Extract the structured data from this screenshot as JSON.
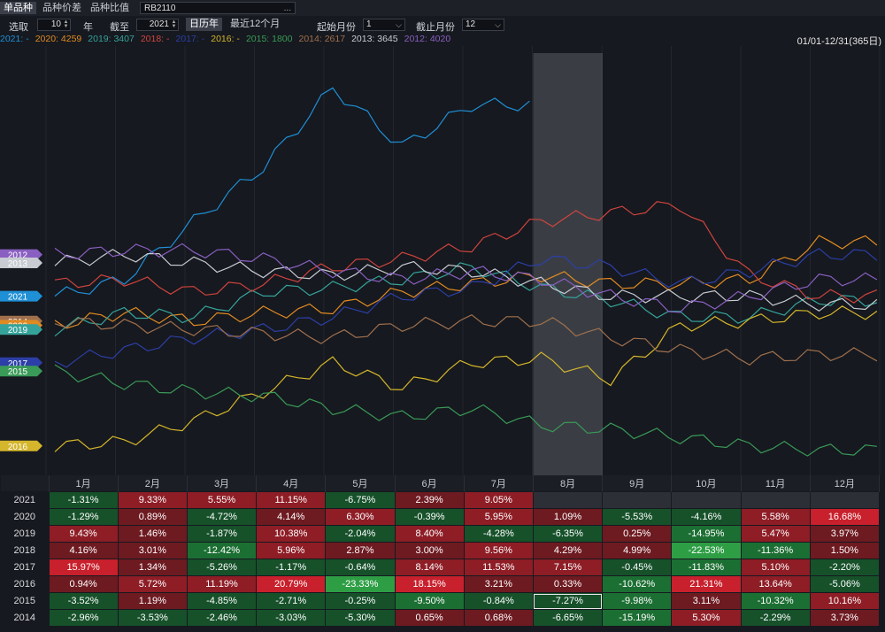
{
  "tabs": [
    "单品种",
    "品种价差",
    "品种比值"
  ],
  "code": "RB2110",
  "code_btn": "...",
  "controls": {
    "pick_label": "选取",
    "years_value": "10",
    "years_unit": "年",
    "until_label": "截至",
    "until_value": "2021",
    "calendar_btn": "日历年",
    "recent_btn": "最近12个月",
    "start_label": "起始月份",
    "start_value": "1",
    "end_label": "截止月份",
    "end_value": "12"
  },
  "legend": [
    {
      "text": "2021: -",
      "color": "#1f8fd6"
    },
    {
      "text": "2020: 4259",
      "color": "#e08a22"
    },
    {
      "text": "2019: 3407",
      "color": "#35a39b"
    },
    {
      "text": "2018: -",
      "color": "#d0443e"
    },
    {
      "text": "2017: -",
      "color": "#2c3fa8"
    },
    {
      "text": "2016: -",
      "color": "#d4b52c"
    },
    {
      "text": "2015: 1800",
      "color": "#3a9a58"
    },
    {
      "text": "2014: 2617",
      "color": "#a0704e"
    },
    {
      "text": "2013: 3645",
      "color": "#c8ccd2"
    },
    {
      "text": "2012: 4020",
      "color": "#8a5fc2"
    }
  ],
  "range_text": "01/01-12/31(365日)",
  "chart_data": {
    "type": "line",
    "x_categories": [
      "1月",
      "2月",
      "3月",
      "4月",
      "5月",
      "6月",
      "7月",
      "8月",
      "9月",
      "10月",
      "11月",
      "12月"
    ],
    "highlight_month": "8月",
    "series": [
      {
        "name": "2021",
        "color": "#1f8fd6",
        "values": [
          2,
          6,
          20,
          33,
          52,
          38,
          48,
          null,
          null,
          null,
          null,
          null
        ]
      },
      {
        "name": "2020",
        "color": "#e08a22",
        "values": [
          -5,
          -2,
          -4,
          -2,
          -1,
          3,
          5,
          7,
          5,
          5,
          6,
          15
        ]
      },
      {
        "name": "2019",
        "color": "#35a39b",
        "values": [
          -6,
          -2,
          -3,
          3,
          4,
          6,
          9,
          4,
          1,
          -3,
          -3,
          1
        ]
      },
      {
        "name": "2018",
        "color": "#d0443e",
        "values": [
          5,
          6,
          3,
          5,
          9,
          11,
          14,
          20,
          22,
          24,
          7,
          2
        ]
      },
      {
        "name": "2017",
        "color": "#2c3fa8",
        "values": [
          -14,
          -11,
          -8,
          -6,
          -3,
          2,
          4,
          11,
          9,
          5,
          8,
          12
        ]
      },
      {
        "name": "2016",
        "color": "#d4b52c",
        "values": [
          -34,
          -33,
          -28,
          -21,
          -14,
          -20,
          -14,
          -13,
          -18,
          -5,
          -4,
          -2
        ]
      },
      {
        "name": "2015",
        "color": "#3a9a58",
        "values": [
          -16,
          -19,
          -21,
          -22,
          -25,
          -27,
          -25,
          -29,
          -30,
          -32,
          -34,
          -35
        ]
      },
      {
        "name": "2014",
        "color": "#a0704e",
        "values": [
          -4,
          -5,
          -6,
          -7,
          -8,
          -5,
          -4,
          -4,
          -8,
          -11,
          -13,
          -12
        ]
      },
      {
        "name": "2013",
        "color": "#c8ccd2",
        "values": [
          10,
          12,
          10,
          8,
          7,
          9,
          8,
          5,
          2,
          2,
          2,
          0
        ]
      },
      {
        "name": "2012",
        "color": "#8a5fc2",
        "values": [
          12,
          13,
          13,
          11,
          8,
          6,
          8,
          6,
          2,
          -1,
          2,
          6
        ]
      }
    ],
    "left_tags": [
      {
        "label": "2021",
        "color": "#1f8fd6"
      },
      {
        "label": "2012",
        "color": "#8a5fc2"
      },
      {
        "label": "2013",
        "color": "#c8ccd2"
      },
      {
        "label": "2014",
        "color": "#a0704e"
      },
      {
        "label": "2020",
        "color": "#e08a22"
      },
      {
        "label": "2019",
        "color": "#35a39b"
      },
      {
        "label": "2017",
        "color": "#2c3fa8"
      },
      {
        "label": "2015",
        "color": "#3a9a58"
      },
      {
        "label": "2016",
        "color": "#d4b52c"
      }
    ]
  },
  "table": {
    "months": [
      "1月",
      "2月",
      "3月",
      "4月",
      "5月",
      "6月",
      "7月",
      "8月",
      "9月",
      "10月",
      "11月",
      "12月"
    ],
    "rows": [
      {
        "year": "2021",
        "cells": [
          "-1.31%",
          "9.33%",
          "5.55%",
          "11.15%",
          "-6.75%",
          "2.39%",
          "9.05%",
          "",
          "",
          "",
          "",
          ""
        ]
      },
      {
        "year": "2020",
        "cells": [
          "-1.29%",
          "0.89%",
          "-4.72%",
          "4.14%",
          "6.30%",
          "-0.39%",
          "5.95%",
          "1.09%",
          "-5.53%",
          "-4.16%",
          "5.58%",
          "16.68%"
        ]
      },
      {
        "year": "2019",
        "cells": [
          "9.43%",
          "1.46%",
          "-1.87%",
          "10.38%",
          "-2.04%",
          "8.40%",
          "-4.28%",
          "-6.35%",
          "0.25%",
          "-14.95%",
          "5.47%",
          "3.97%"
        ]
      },
      {
        "year": "2018",
        "cells": [
          "4.16%",
          "3.01%",
          "-12.42%",
          "5.96%",
          "2.87%",
          "3.00%",
          "9.56%",
          "4.29%",
          "4.99%",
          "-22.53%",
          "-11.36%",
          "1.50%"
        ]
      },
      {
        "year": "2017",
        "cells": [
          "15.97%",
          "1.34%",
          "-5.26%",
          "-1.17%",
          "-0.64%",
          "8.14%",
          "11.53%",
          "7.15%",
          "-0.45%",
          "-11.83%",
          "5.10%",
          "-2.20%"
        ]
      },
      {
        "year": "2016",
        "cells": [
          "0.94%",
          "5.72%",
          "11.19%",
          "20.79%",
          "-23.33%",
          "18.15%",
          "3.21%",
          "0.33%",
          "-10.62%",
          "21.31%",
          "13.64%",
          "-5.06%"
        ]
      },
      {
        "year": "2015",
        "cells": [
          "-3.52%",
          "1.19%",
          "-4.85%",
          "-2.71%",
          "-0.25%",
          "-9.50%",
          "-0.84%",
          "-7.27%",
          "-9.98%",
          "3.11%",
          "-10.32%",
          "10.16%"
        ]
      },
      {
        "year": "2014",
        "cells": [
          "-2.96%",
          "-3.53%",
          "-2.46%",
          "-3.03%",
          "-5.30%",
          "0.65%",
          "0.68%",
          "-6.65%",
          "-15.19%",
          "5.30%",
          "-2.29%",
          "3.73%"
        ]
      }
    ],
    "selected": {
      "year": "2015",
      "month_index": 7
    }
  }
}
